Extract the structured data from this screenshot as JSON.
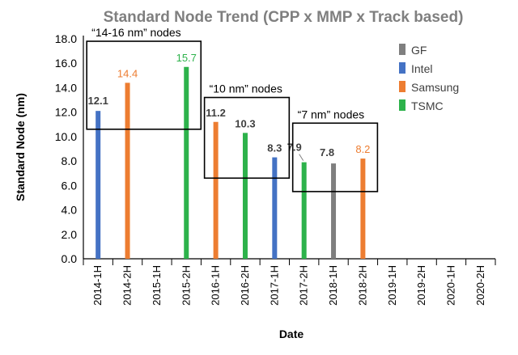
{
  "chart_data": {
    "type": "bar",
    "title": "Standard Node Trend (CPP x MMP x Track based)",
    "xlabel": "Date",
    "ylabel": "Standard Node (nm)",
    "ylim": [
      0,
      18
    ],
    "yticks": [
      "0.0",
      "2.0",
      "4.0",
      "6.0",
      "8.0",
      "10.0",
      "12.0",
      "14.0",
      "16.0",
      "18.0"
    ],
    "categories": [
      "2014-1H",
      "2014-2H",
      "2015-1H",
      "2015-2H",
      "2016-1H",
      "2016-2H",
      "2017-1H",
      "2017-2H",
      "2018-1H",
      "2018-2H",
      "2019-1H",
      "2019-2H",
      "2020-1H",
      "2020-2H"
    ],
    "legend_position": "right",
    "series": [
      {
        "name": "GF",
        "color": "#7f7f7f",
        "points": [
          {
            "category": "2018-1H",
            "value": 7.8,
            "label": "7.8"
          }
        ]
      },
      {
        "name": "Intel",
        "color": "#4472c4",
        "points": [
          {
            "category": "2014-1H",
            "value": 12.1,
            "label": "12.1"
          },
          {
            "category": "2017-1H",
            "value": 8.3,
            "label": "8.3"
          }
        ]
      },
      {
        "name": "Samsung",
        "color": "#ed7d31",
        "points": [
          {
            "category": "2014-2H",
            "value": 14.4,
            "label": "14.4"
          },
          {
            "category": "2016-1H",
            "value": 11.2,
            "label": "11.2"
          },
          {
            "category": "2018-2H",
            "value": 8.2,
            "label": "8.2"
          }
        ]
      },
      {
        "name": "TSMC",
        "color": "#2db24b",
        "points": [
          {
            "category": "2015-2H",
            "value": 15.7,
            "label": "15.7"
          },
          {
            "category": "2016-2H",
            "value": 10.3,
            "label": "10.3"
          },
          {
            "category": "2017-2H",
            "value": 7.9,
            "label": "7.9"
          }
        ]
      }
    ],
    "annotations": [
      {
        "text": "“14-16 nm” nodes",
        "from": "2014-1H",
        "to": "2015-2H",
        "ymin": 10.6,
        "ymax": 17.8
      },
      {
        "text": "“10 nm” nodes",
        "from": "2016-1H",
        "to": "2017-1H",
        "ymin": 6.6,
        "ymax": 13.2
      },
      {
        "text": "“7 nm” nodes",
        "from": "2017-2H",
        "to": "2018-2H",
        "ymin": 5.5,
        "ymax": 11.1
      }
    ]
  }
}
